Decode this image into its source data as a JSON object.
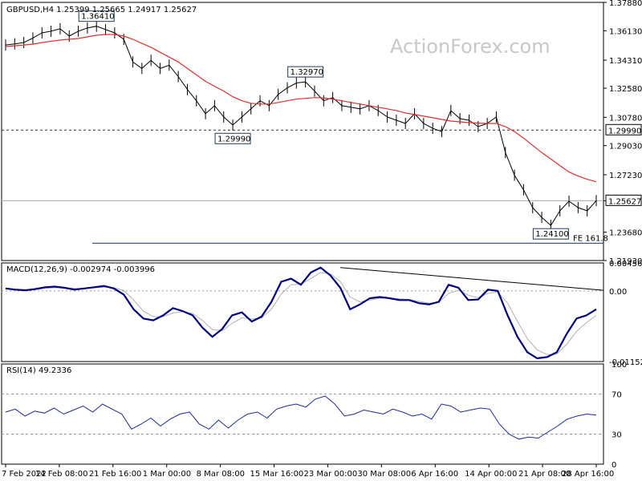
{
  "chart_data": [
    {
      "type": "line",
      "title": "GBPUSD,H4  1.25399 1.25665 1.24917 1.25627",
      "watermark": "ActionForex.com",
      "x_labels": [
        "7 Feb 2022",
        "14 Feb 08:00",
        "21 Feb 16:00",
        "1 Mar 00:00",
        "8 Mar 08:00",
        "15 Mar 16:00",
        "23 Mar 00:00",
        "30 Mar 08:00",
        "6 Apr 16:00",
        "14 Apr 00:00",
        "21 Apr 08:00",
        "28 Apr 16:00"
      ],
      "ylim": [
        1.2193,
        1.3788
      ],
      "y_ticks": [
        "1.37880",
        "1.36130",
        "1.34310",
        "1.32580",
        "1.30780",
        "1.29030",
        "1.27230",
        "1.25627",
        "1.23680",
        "1.21930"
      ],
      "price_series": {
        "name": "GBPUSD",
        "color": "#000000",
        "values": [
          1.3525,
          1.3532,
          1.354,
          1.3568,
          1.36,
          1.361,
          1.3625,
          1.358,
          1.361,
          1.363,
          1.3641,
          1.362,
          1.36,
          1.356,
          1.342,
          1.338,
          1.343,
          1.338,
          1.34,
          1.333,
          1.325,
          1.318,
          1.31,
          1.315,
          1.308,
          1.303,
          1.308,
          1.313,
          1.318,
          1.315,
          1.322,
          1.326,
          1.329,
          1.3297,
          1.324,
          1.318,
          1.32,
          1.315,
          1.314,
          1.313,
          1.315,
          1.312,
          1.308,
          1.306,
          1.304,
          1.31,
          1.304,
          1.301,
          1.299,
          1.312,
          1.307,
          1.306,
          1.302,
          1.304,
          1.308,
          1.286,
          1.272,
          1.263,
          1.252,
          1.246,
          1.241,
          1.25,
          1.256,
          1.252,
          1.25,
          1.2563
        ]
      },
      "sma": {
        "color": "#e0302c",
        "values": [
          1.3515,
          1.352,
          1.3525,
          1.353,
          1.354,
          1.3548,
          1.3555,
          1.356,
          1.3565,
          1.3575,
          1.3585,
          1.359,
          1.359,
          1.358,
          1.356,
          1.3535,
          1.351,
          1.348,
          1.345,
          1.342,
          1.338,
          1.334,
          1.33,
          1.327,
          1.324,
          1.3205,
          1.318,
          1.3165,
          1.316,
          1.316,
          1.317,
          1.318,
          1.319,
          1.3195,
          1.32,
          1.3198,
          1.319,
          1.318,
          1.317,
          1.316,
          1.315,
          1.314,
          1.313,
          1.312,
          1.3105,
          1.3095,
          1.3085,
          1.3075,
          1.3065,
          1.3055,
          1.305,
          1.3045,
          1.3042,
          1.304,
          1.304,
          1.302,
          1.299,
          1.295,
          1.2905,
          1.286,
          1.282,
          1.278,
          1.274,
          1.2715,
          1.2695,
          1.268
        ]
      },
      "horizontal_lines": [
        {
          "label": "1.29990",
          "value": 1.2999,
          "style": "dashed"
        },
        {
          "label": "1.25627",
          "value": 1.25627,
          "style": "solid"
        }
      ],
      "price_callouts": [
        {
          "label": "1.36410",
          "x_index": 10,
          "value": 1.3641
        },
        {
          "label": "1.32970",
          "x_index": 33,
          "value": 1.3297
        },
        {
          "label": "1.29990",
          "x_index": 25,
          "value": 1.2999
        },
        {
          "label": "1.24100",
          "x_index": 60,
          "value": 1.241
        }
      ],
      "fibonacci_line": {
        "label": "FE 161.8",
        "value": 1.23
      }
    },
    {
      "type": "line",
      "title": "MACD(12,26,9) -0.002974 -0.003996",
      "ylim": [
        -0.011529,
        0.00456
      ],
      "y_ticks": [
        "0.00456",
        "0.00",
        "-0.011529"
      ],
      "macd": {
        "color": "#000080",
        "values": [
          0.0004,
          0.0002,
          0.0001,
          0.0003,
          0.0006,
          0.0007,
          0.0005,
          0.0002,
          0.0004,
          0.0006,
          0.0008,
          0.0004,
          -0.0006,
          -0.003,
          -0.0045,
          -0.0048,
          -0.004,
          -0.0028,
          -0.0033,
          -0.004,
          -0.006,
          -0.0075,
          -0.0062,
          -0.004,
          -0.0035,
          -0.005,
          -0.0042,
          -0.0018,
          0.0015,
          0.002,
          0.001,
          0.003,
          0.0038,
          0.0025,
          0.0005,
          -0.003,
          -0.0022,
          -0.0012,
          -0.001,
          -0.0012,
          -0.0015,
          -0.0015,
          -0.002,
          -0.0022,
          -0.0018,
          0.001,
          0.0005,
          -0.0015,
          -0.0014,
          0.0002,
          0.0,
          -0.004,
          -0.0075,
          -0.01,
          -0.011,
          -0.0108,
          -0.01,
          -0.007,
          -0.0045,
          -0.004,
          -0.003
        ]
      },
      "signal": {
        "color": "#b0b0b0",
        "values": [
          0.0003,
          0.0003,
          0.0002,
          0.0002,
          0.0004,
          0.0005,
          0.0005,
          0.0004,
          0.0004,
          0.0005,
          0.0006,
          0.0005,
          0.0001,
          -0.0015,
          -0.0033,
          -0.0042,
          -0.0042,
          -0.0036,
          -0.0034,
          -0.0037,
          -0.0048,
          -0.0063,
          -0.0065,
          -0.0053,
          -0.0044,
          -0.0046,
          -0.0044,
          -0.003,
          -0.0005,
          0.001,
          0.0011,
          0.002,
          0.003,
          0.0028,
          0.0015,
          -0.001,
          -0.0018,
          -0.0015,
          -0.0012,
          -0.0012,
          -0.0013,
          -0.0014,
          -0.0017,
          -0.002,
          -0.0019,
          -0.0004,
          0.0001,
          -0.0007,
          -0.0011,
          -0.0004,
          -0.0002,
          -0.002,
          -0.005,
          -0.0078,
          -0.0096,
          -0.0104,
          -0.0103,
          -0.0087,
          -0.0066,
          -0.0052,
          -0.004
        ]
      },
      "trendline": {
        "start": {
          "x_index": 34,
          "value": 0.0038
        },
        "end": {
          "x_index": 65,
          "value": 0.0001
        }
      }
    },
    {
      "type": "line",
      "title": "RSI(14) 49.2336",
      "ylim": [
        0,
        100
      ],
      "y_ticks": [
        "100",
        "70",
        "30",
        "0"
      ],
      "levels": [
        70,
        30
      ],
      "rsi": {
        "color": "#1a2a9c",
        "values": [
          52,
          55,
          48,
          53,
          51,
          56,
          50,
          54,
          58,
          52,
          60,
          55,
          50,
          35,
          40,
          46,
          38,
          45,
          50,
          52,
          40,
          35,
          44,
          36,
          44,
          50,
          52,
          46,
          55,
          58,
          60,
          57,
          65,
          68,
          60,
          48,
          50,
          54,
          52,
          50,
          55,
          52,
          48,
          50,
          45,
          60,
          58,
          52,
          54,
          56,
          55,
          40,
          30,
          25,
          27,
          26,
          32,
          38,
          45,
          48,
          50,
          49
        ]
      }
    }
  ]
}
